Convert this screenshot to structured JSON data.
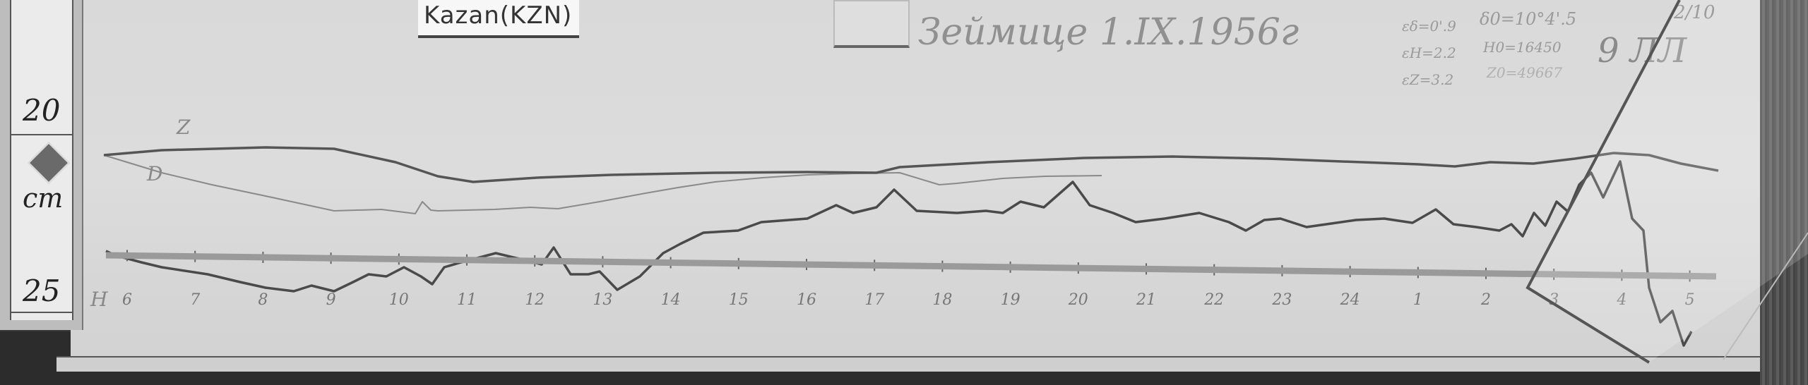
{
  "ruler": {
    "upper_mark": "20",
    "lower_mark": "25",
    "unit": "cm"
  },
  "header": {
    "station_label": "Kazan(KZN)",
    "handwritten_title": "Зеймице 1.IX.1956г",
    "scale_values": [
      "εδ=0'.9",
      "εH=2.2",
      "εZ=3.2"
    ],
    "base_values": [
      "δ0=10°4'.5",
      "H0=16450",
      "Z0=49667"
    ],
    "sheet_mark": "9 ЛЛ",
    "sheet_number": "2/10"
  },
  "traces": {
    "z_label": "Z",
    "d_label": "D",
    "h_label": "H"
  },
  "hours": [
    "6",
    "7",
    "8",
    "9",
    "10",
    "11",
    "12",
    "13",
    "14",
    "15",
    "16",
    "17",
    "18",
    "19",
    "20",
    "21",
    "22",
    "23",
    "24",
    "1",
    "2",
    "3",
    "4",
    "5"
  ]
}
